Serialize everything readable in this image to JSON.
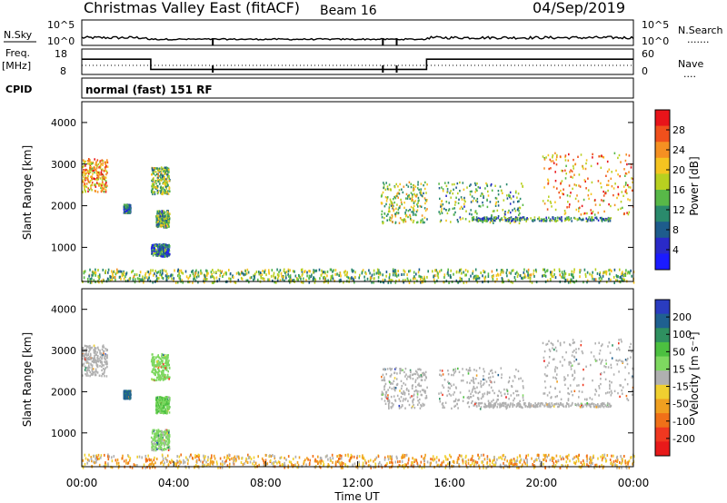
{
  "header": {
    "title": "Christmas Valley East (fitACF)",
    "beam": "Beam 16",
    "date": "04/Sep/2019"
  },
  "nsky_panel": {
    "left_label": "N.Sky",
    "left_ticks": [
      "10^5",
      "10^0"
    ],
    "right_ticks": [
      "10^5",
      "10^0"
    ],
    "right_label": "N.Search",
    "right_legend": "......."
  },
  "freq_panel": {
    "left_label_1": "Freq.",
    "left_label_2": "[MHz]",
    "left_ticks": [
      "18",
      "8"
    ],
    "right_ticks": [
      "60",
      "0"
    ],
    "right_label": "Nave",
    "right_legend": "...."
  },
  "cpid": {
    "label": "CPID",
    "text": "normal (fast) 151 RF"
  },
  "range_axis": {
    "label": "Slant Range [km]",
    "ticks": [
      "4000",
      "3000",
      "2000",
      "1000"
    ]
  },
  "time_axis": {
    "label": "Time UT",
    "ticks": [
      "00:00",
      "04:00",
      "08:00",
      "12:00",
      "16:00",
      "20:00",
      "00:00"
    ]
  },
  "power_scale": {
    "label": "Power [dB]",
    "ticks": [
      "28",
      "24",
      "20",
      "16",
      "12",
      "8",
      "4"
    ],
    "colors": [
      "#e8141a",
      "#f0501c",
      "#f59022",
      "#f5c420",
      "#b8d020",
      "#58b848",
      "#2a8a6c",
      "#1e5c8c",
      "#2a2ac8",
      "#1b1bff"
    ]
  },
  "velocity_scale": {
    "label": "Velocity [m s⁻¹]",
    "ticks": [
      "200",
      "100",
      "50",
      "15",
      "-15",
      "-50",
      "-100",
      "-200"
    ],
    "colors": [
      "#2a3cc0",
      "#1f6090",
      "#2f9060",
      "#4cc040",
      "#7ed860",
      "#b0b0b0",
      "#f0d030",
      "#f0a020",
      "#f07018",
      "#f03820",
      "#e81a1a"
    ]
  },
  "chart_data": [
    {
      "type": "line",
      "title": "N.Sky",
      "x": [
        "00:00",
        "04:00",
        "08:00",
        "12:00",
        "16:00",
        "20:00",
        "00:00"
      ],
      "series": [
        {
          "name": "N.Sky",
          "values": [
            3,
            3,
            3,
            3,
            3,
            3,
            3
          ]
        }
      ]
    },
    {
      "type": "line",
      "title": "Freq. [MHz]",
      "x_hours": [
        0,
        3,
        3,
        15,
        15,
        24
      ],
      "series": [
        {
          "name": "Freq.",
          "values": [
            14,
            14,
            10,
            10,
            14,
            14
          ]
        }
      ],
      "ylim": [
        8,
        18
      ]
    },
    {
      "type": "heatmap",
      "title": "Power [dB]",
      "xlabel": "Time UT",
      "ylabel": "Slant Range [km]",
      "xlim_hours": [
        0,
        24
      ],
      "ylim_km": [
        180,
        4500
      ],
      "zlim": [
        0,
        30
      ],
      "echo_regions": [
        {
          "t_start": 0.0,
          "t_end": 1.1,
          "r_min": 2350,
          "r_max": 3150,
          "value": 22
        },
        {
          "t_start": 1.8,
          "t_end": 2.1,
          "r_min": 1850,
          "r_max": 2050,
          "value": 8
        },
        {
          "t_start": 3.0,
          "t_end": 3.8,
          "r_min": 2300,
          "r_max": 2950,
          "value": 14
        },
        {
          "t_start": 3.0,
          "t_end": 3.8,
          "r_min": 800,
          "r_max": 1100,
          "value": 8
        },
        {
          "t_start": 3.2,
          "t_end": 3.8,
          "r_min": 1500,
          "r_max": 1900,
          "value": 12
        },
        {
          "t_start": 13.0,
          "t_end": 15.0,
          "r_min": 1600,
          "r_max": 2600,
          "value": 16
        },
        {
          "t_start": 15.5,
          "t_end": 19.2,
          "r_min": 1600,
          "r_max": 2600,
          "value": 12
        },
        {
          "t_start": 17.0,
          "t_end": 23.0,
          "r_min": 1650,
          "r_max": 1750,
          "value": 10
        },
        {
          "t_start": 20.0,
          "t_end": 24.0,
          "r_min": 1800,
          "r_max": 3300,
          "value": 22
        },
        {
          "t_start": 0.0,
          "t_end": 24.0,
          "r_min": 180,
          "r_max": 500,
          "value": 14
        }
      ]
    },
    {
      "type": "heatmap",
      "title": "Velocity [m s⁻¹]",
      "xlabel": "Time UT",
      "ylabel": "Slant Range [km]",
      "xlim_hours": [
        0,
        24
      ],
      "ylim_km": [
        180,
        4500
      ],
      "zlim": [
        -200,
        200
      ],
      "echo_regions": [
        {
          "t_start": 0.0,
          "t_end": 1.1,
          "r_min": 2400,
          "r_max": 3150,
          "value": 0
        },
        {
          "t_start": 1.8,
          "t_end": 2.1,
          "r_min": 1850,
          "r_max": 2050,
          "value": 150
        },
        {
          "t_start": 3.0,
          "t_end": 3.8,
          "r_min": 2300,
          "r_max": 2950,
          "value": 40
        },
        {
          "t_start": 3.0,
          "t_end": 3.8,
          "r_min": 600,
          "r_max": 1100,
          "value": 30
        },
        {
          "t_start": 3.2,
          "t_end": 3.8,
          "r_min": 1500,
          "r_max": 1900,
          "value": 60
        },
        {
          "t_start": 13.0,
          "t_end": 15.0,
          "r_min": 1600,
          "r_max": 2600,
          "value": 0
        },
        {
          "t_start": 15.5,
          "t_end": 19.2,
          "r_min": 1600,
          "r_max": 2600,
          "value": 0
        },
        {
          "t_start": 17.0,
          "t_end": 23.0,
          "r_min": 1650,
          "r_max": 1750,
          "value": 0
        },
        {
          "t_start": 20.0,
          "t_end": 24.0,
          "r_min": 1800,
          "r_max": 3300,
          "value": 0
        },
        {
          "t_start": 0.0,
          "t_end": 24.0,
          "r_min": 180,
          "r_max": 500,
          "value": -60
        }
      ]
    }
  ]
}
